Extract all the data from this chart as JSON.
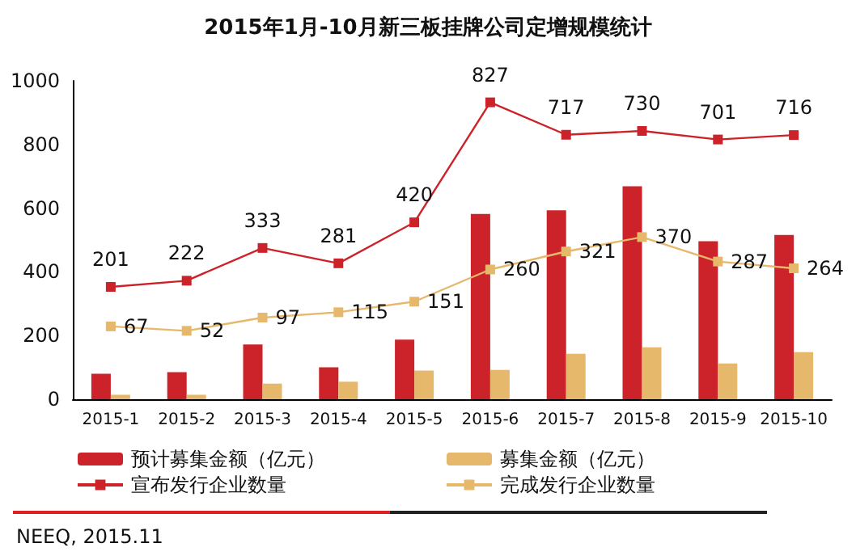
{
  "chart_data": {
    "type": "bar",
    "title": "2015年1月-10月新三板挂牌公司定增规模统计",
    "categories": [
      "2015-1",
      "2015-2",
      "2015-3",
      "2015-4",
      "2015-5",
      "2015-6",
      "2015-7",
      "2015-8",
      "2015-9",
      "2015-10"
    ],
    "series": [
      {
        "name": "预计募集金额（亿元）",
        "color": "#cc2229",
        "values": [
          80,
          85,
          172,
          100,
          187,
          582,
          593,
          669,
          496,
          516
        ]
      },
      {
        "name": "募集金额（亿元）",
        "color": "#e6b86c",
        "values": [
          14,
          14,
          49,
          55,
          90,
          92,
          143,
          163,
          112,
          148
        ]
      },
      {
        "name": "宣布发行企业数量",
        "type": "line",
        "axis": "y2",
        "color": "#cc2229",
        "marker": "square",
        "data_labels": true,
        "values": [
          201,
          222,
          333,
          281,
          420,
          827,
          717,
          730,
          701,
          716
        ]
      },
      {
        "name": "完成发行企业数量",
        "type": "line",
        "axis": "y2",
        "color": "#e6b86c",
        "marker": "square",
        "data_labels": true,
        "values": [
          67,
          52,
          97,
          115,
          151,
          260,
          321,
          370,
          287,
          264
        ]
      }
    ],
    "ylim": [
      0,
      1000
    ],
    "yticks": [
      0,
      200,
      400,
      600,
      800,
      1000
    ],
    "y2lim": [
      -180,
      900
    ],
    "grid": false,
    "legend": "bottom",
    "annotations": [
      "NEEQ, 2015.11"
    ]
  }
}
